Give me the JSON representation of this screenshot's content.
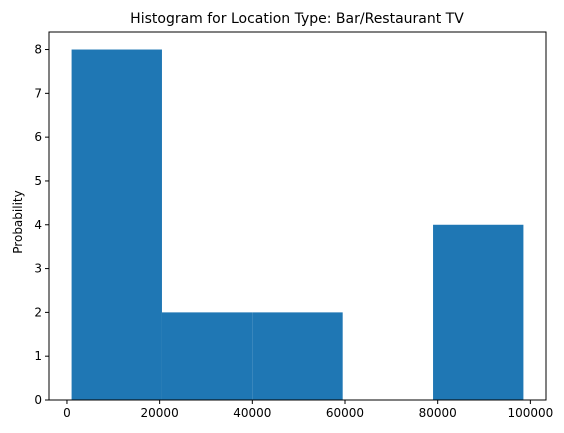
{
  "chart_data": {
    "type": "histogram",
    "title": "Histogram for Location Type: Bar/Restaurant TV",
    "xlabel": "",
    "ylabel": "Probability",
    "bins": [
      {
        "x0": 1000,
        "x1": 20500,
        "count": 8
      },
      {
        "x0": 20500,
        "x1": 40000,
        "count": 2
      },
      {
        "x0": 40000,
        "x1": 59500,
        "count": 2
      },
      {
        "x0": 59500,
        "x1": 79000,
        "count": 0
      },
      {
        "x0": 79000,
        "x1": 98500,
        "count": 4
      }
    ],
    "xlim": [
      -3875,
      103375
    ],
    "ylim": [
      0,
      8.4
    ],
    "xticks": [
      0,
      20000,
      40000,
      60000,
      80000,
      100000
    ],
    "xtick_labels": [
      "0",
      "20000",
      "40000",
      "60000",
      "80000",
      "100000"
    ],
    "yticks": [
      0,
      1,
      2,
      3,
      4,
      5,
      6,
      7,
      8
    ],
    "ytick_labels": [
      "0",
      "1",
      "2",
      "3",
      "4",
      "5",
      "6",
      "7",
      "8"
    ],
    "bar_color": "#1f77b4",
    "grid": false,
    "legend": "none"
  }
}
